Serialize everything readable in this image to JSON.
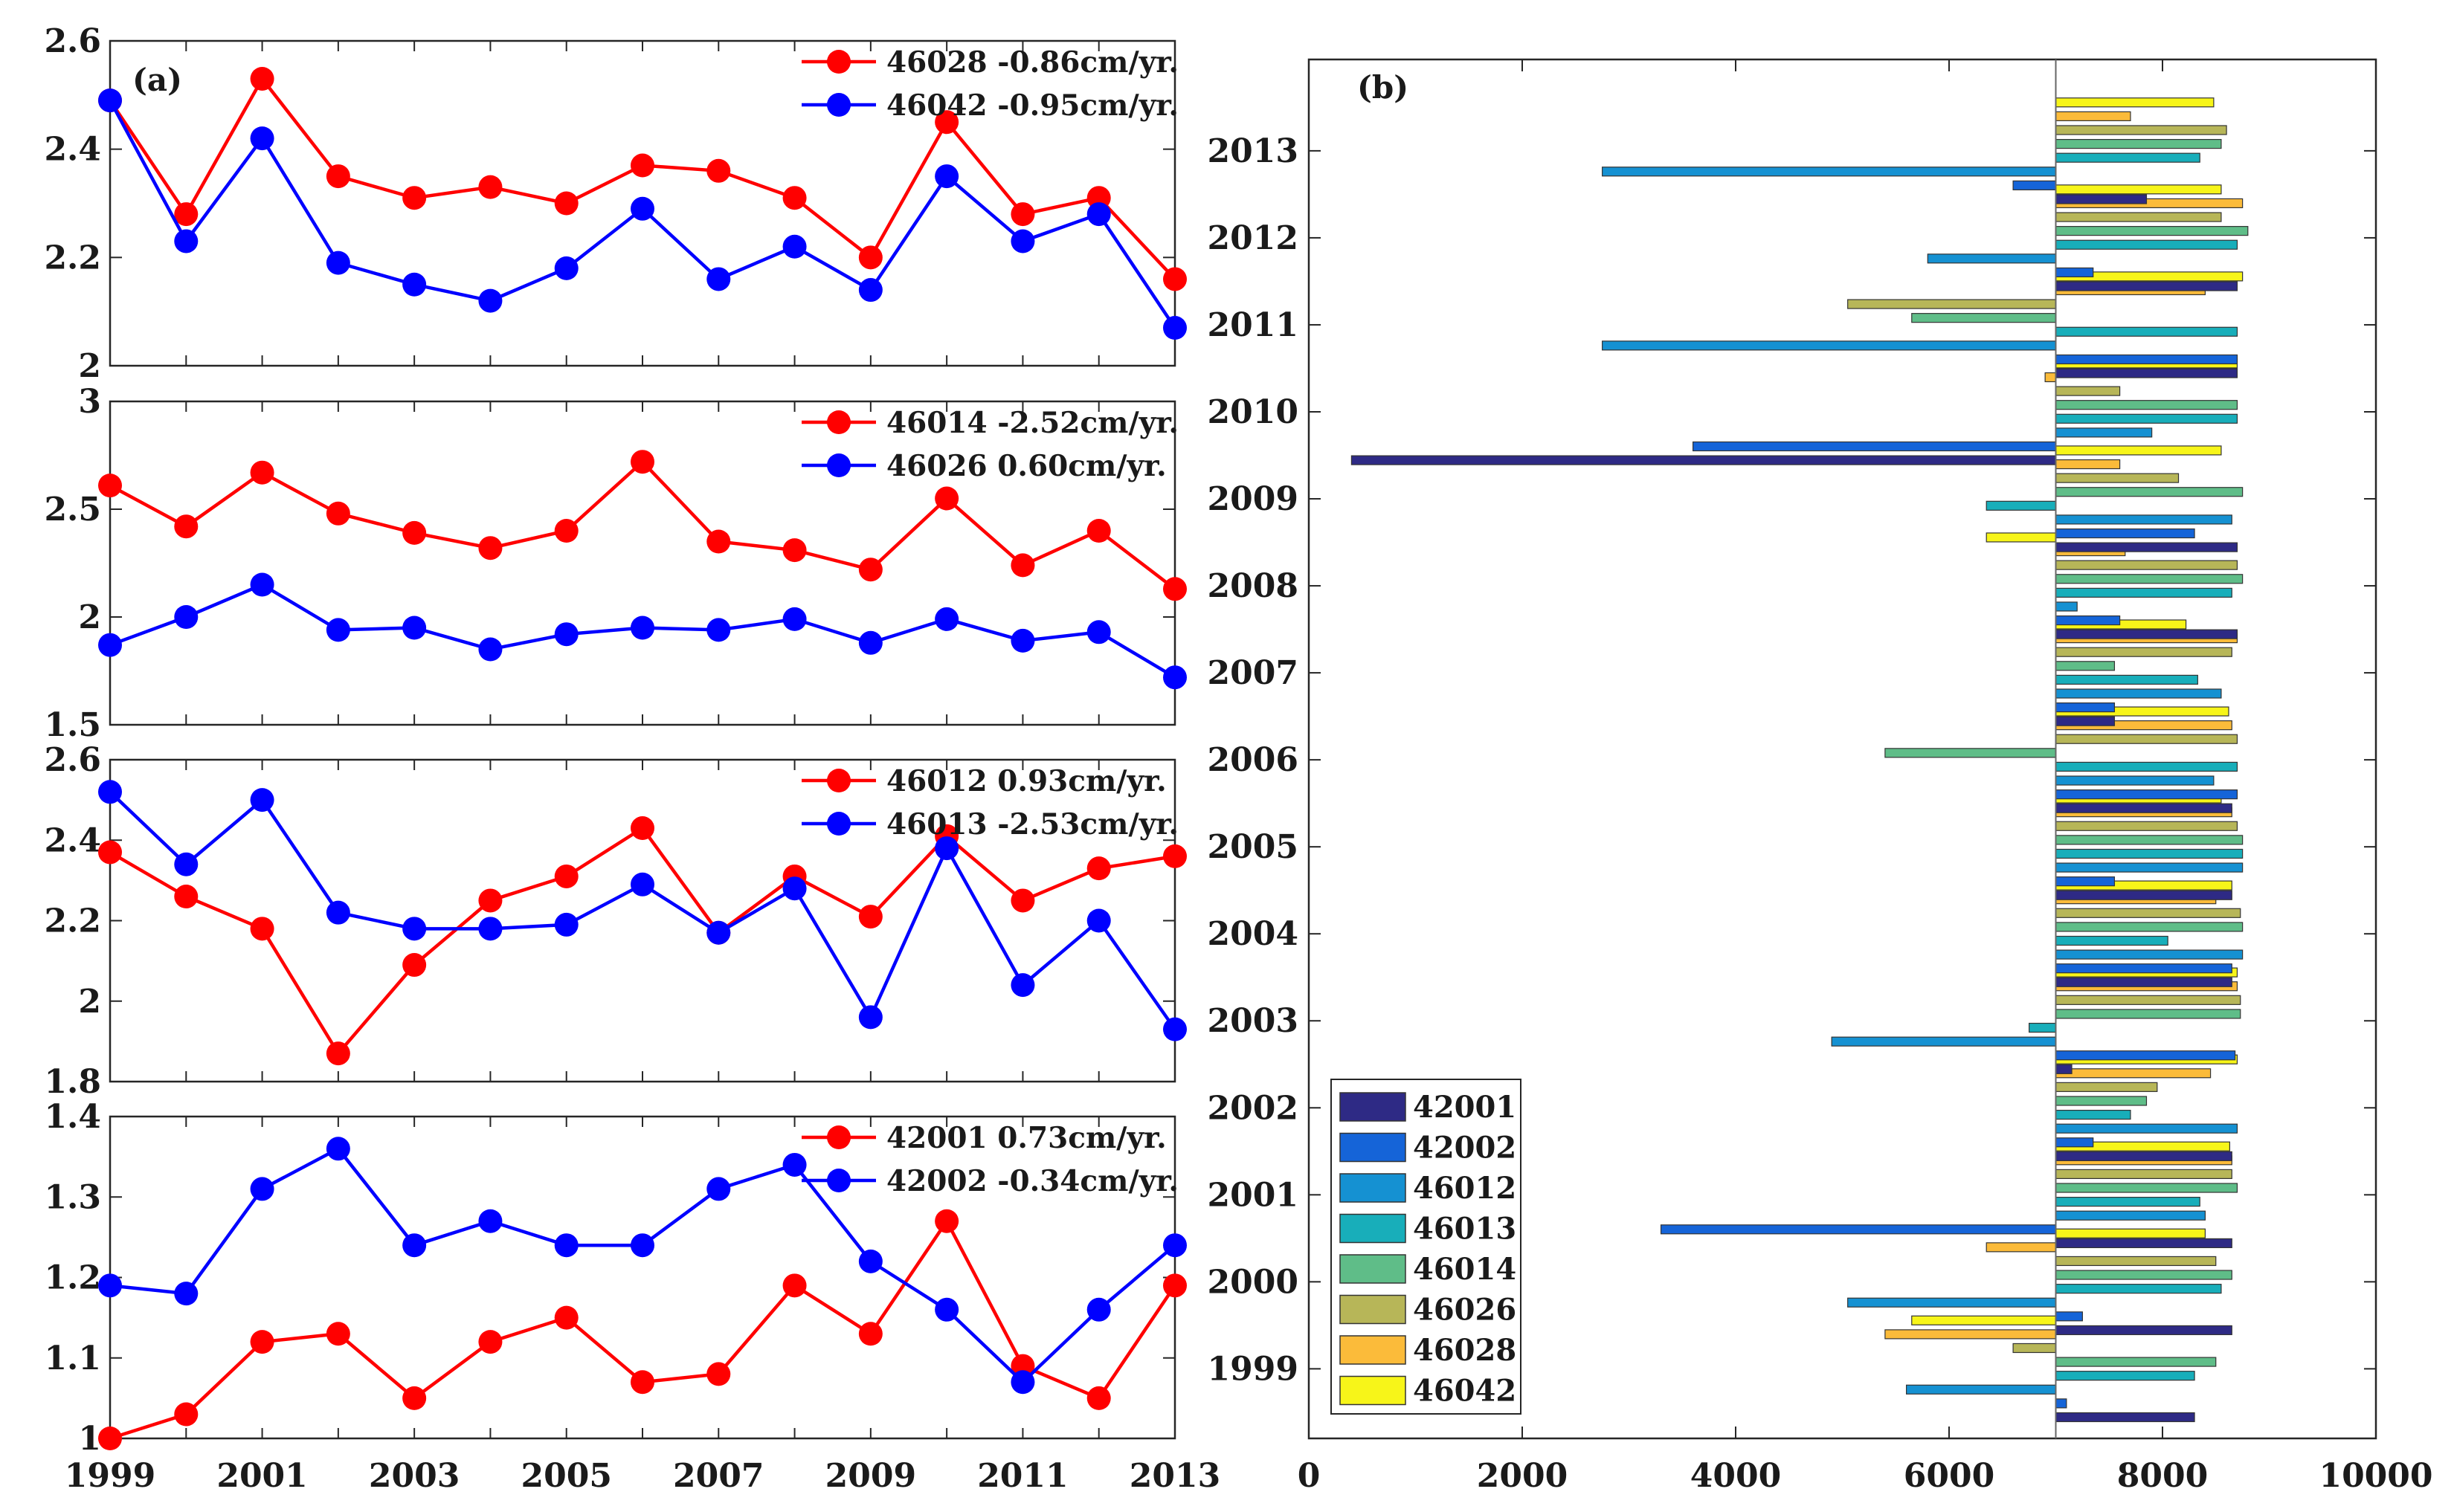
{
  "figure": {
    "colors": {
      "red": "#ff0000",
      "blue": "#0000ff",
      "axis": "#262626",
      "bar_edge": "#333333",
      "zero_line": "#666666"
    }
  },
  "chart_data": [
    {
      "type": "line",
      "panel_label": "(a)",
      "x": [
        1999,
        2000,
        2001,
        2002,
        2003,
        2004,
        2005,
        2006,
        2007,
        2008,
        2009,
        2010,
        2011,
        2012,
        2013
      ],
      "ylim": [
        2,
        2.6
      ],
      "yticks": [
        "2",
        "2.2",
        "2.4",
        "2.6"
      ],
      "series": [
        {
          "name": "46028 -0.86cm/yr.",
          "color": "#ff0000",
          "values": [
            2.49,
            2.28,
            2.53,
            2.35,
            2.31,
            2.33,
            2.3,
            2.37,
            2.36,
            2.31,
            2.2,
            2.45,
            2.28,
            2.31,
            2.16
          ]
        },
        {
          "name": "46042 -0.95cm/yr.",
          "color": "#0000ff",
          "values": [
            2.49,
            2.23,
            2.42,
            2.19,
            2.15,
            2.12,
            2.18,
            2.29,
            2.16,
            2.22,
            2.14,
            2.35,
            2.23,
            2.28,
            2.07
          ]
        }
      ]
    },
    {
      "type": "line",
      "x": [
        1999,
        2000,
        2001,
        2002,
        2003,
        2004,
        2005,
        2006,
        2007,
        2008,
        2009,
        2010,
        2011,
        2012,
        2013
      ],
      "ylim": [
        1.5,
        3
      ],
      "yticks": [
        "1.5",
        "2",
        "2.5",
        "3"
      ],
      "series": [
        {
          "name": "46014 -2.52cm/yr.",
          "color": "#ff0000",
          "values": [
            2.61,
            2.42,
            2.67,
            2.48,
            2.39,
            2.32,
            2.4,
            2.72,
            2.35,
            2.31,
            2.22,
            2.55,
            2.24,
            2.4,
            2.13
          ]
        },
        {
          "name": "46026  0.60cm/yr.",
          "color": "#0000ff",
          "values": [
            1.87,
            2.0,
            2.15,
            1.94,
            1.95,
            1.85,
            1.92,
            1.95,
            1.94,
            1.99,
            1.88,
            1.99,
            1.89,
            1.93,
            1.72
          ]
        }
      ]
    },
    {
      "type": "line",
      "x": [
        1999,
        2000,
        2001,
        2002,
        2003,
        2004,
        2005,
        2006,
        2007,
        2008,
        2009,
        2010,
        2011,
        2012,
        2013
      ],
      "ylim": [
        1.8,
        2.6
      ],
      "yticks": [
        "1.8",
        "2",
        "2.2",
        "2.4",
        "2.6"
      ],
      "series": [
        {
          "name": "46012  0.93cm/yr.",
          "color": "#ff0000",
          "values": [
            2.37,
            2.26,
            2.18,
            1.87,
            2.09,
            2.25,
            2.31,
            2.43,
            2.17,
            2.31,
            2.21,
            2.41,
            2.25,
            2.33,
            2.36
          ]
        },
        {
          "name": "46013 -2.53cm/yr.",
          "color": "#0000ff",
          "values": [
            2.52,
            2.34,
            2.5,
            2.22,
            2.18,
            2.18,
            2.19,
            2.29,
            2.17,
            2.28,
            1.96,
            2.38,
            2.04,
            2.2,
            1.93
          ]
        }
      ]
    },
    {
      "type": "line",
      "x": [
        1999,
        2000,
        2001,
        2002,
        2003,
        2004,
        2005,
        2006,
        2007,
        2008,
        2009,
        2010,
        2011,
        2012,
        2013
      ],
      "xticks": [
        "1999",
        "2001",
        "2003",
        "2005",
        "2007",
        "2009",
        "2011",
        "2013"
      ],
      "ylim": [
        1,
        1.4
      ],
      "yticks": [
        "1",
        "1.1",
        "1.2",
        "1.3",
        "1.4"
      ],
      "series": [
        {
          "name": "42001  0.73cm/yr.",
          "color": "#ff0000",
          "values": [
            1.0,
            1.03,
            1.12,
            1.13,
            1.05,
            1.12,
            1.15,
            1.07,
            1.08,
            1.19,
            1.13,
            1.27,
            1.09,
            1.05,
            1.19
          ]
        },
        {
          "name": "42002 -0.34cm/yr.",
          "color": "#0000ff",
          "values": [
            1.19,
            1.18,
            1.31,
            1.36,
            1.24,
            1.27,
            1.24,
            1.24,
            1.31,
            1.34,
            1.22,
            1.16,
            1.07,
            1.16,
            1.24
          ]
        }
      ]
    },
    {
      "type": "bar",
      "orientation": "horizontal",
      "panel_label": "(b)",
      "baseline": 7000,
      "xlim": [
        0,
        10000
      ],
      "xticks": [
        "0",
        "2000",
        "4000",
        "6000",
        "8000",
        "10000"
      ],
      "ylim": [
        1998.2,
        2014.05
      ],
      "categories": [
        "1999",
        "2000",
        "2001",
        "2002",
        "2003",
        "2004",
        "2005",
        "2006",
        "2007",
        "2008",
        "2009",
        "2010",
        "2011",
        "2012",
        "2013"
      ],
      "series": [
        {
          "name": "42001",
          "color": "#2e2a85",
          "values": [
            8300,
            8650,
            8650,
            8650,
            7150,
            8650,
            8650,
            8650,
            7550,
            8700,
            8700,
            400,
            8700,
            8700,
            7850
          ]
        },
        {
          "name": "42002",
          "color": "#1564d8",
          "values": [
            7100,
            7250,
            3300,
            7350,
            8680,
            8650,
            7550,
            8700,
            7550,
            7600,
            8300,
            3600,
            8700,
            7350,
            6600
          ]
        },
        {
          "name": "46012",
          "color": "#1591d2",
          "values": [
            5600,
            5050,
            8400,
            8700,
            4900,
            8750,
            8750,
            8480,
            8550,
            7200,
            8650,
            7900,
            2750,
            5800,
            2750
          ]
        },
        {
          "name": "46013",
          "color": "#18aeba",
          "values": [
            8300,
            8550,
            8350,
            7700,
            6750,
            8050,
            8750,
            8700,
            8330,
            8650,
            6350,
            8700,
            8700,
            8700,
            8350
          ]
        },
        {
          "name": "46014",
          "color": "#5fbd88",
          "values": [
            8500,
            8650,
            8700,
            7850,
            8730,
            8750,
            8750,
            5400,
            7550,
            8750,
            8750,
            8700,
            5650,
            8800,
            8550
          ]
        },
        {
          "name": "46026",
          "color": "#b7b658",
          "values": [
            6600,
            8500,
            8650,
            7950,
            8730,
            8730,
            8700,
            8700,
            8650,
            8700,
            8150,
            7600,
            5050,
            8550,
            8600
          ]
        },
        {
          "name": "46028",
          "color": "#fbbb3a",
          "values": [
            5400,
            6350,
            8650,
            8450,
            8700,
            8500,
            8650,
            8650,
            8700,
            7650,
            7600,
            6900,
            8400,
            8750,
            7700
          ]
        },
        {
          "name": "46042",
          "color": "#f7f519",
          "values": [
            5650,
            8400,
            8630,
            8700,
            8700,
            8650,
            8550,
            8620,
            8220,
            6350,
            8550,
            8700,
            8750,
            8550,
            8480
          ]
        }
      ]
    }
  ]
}
